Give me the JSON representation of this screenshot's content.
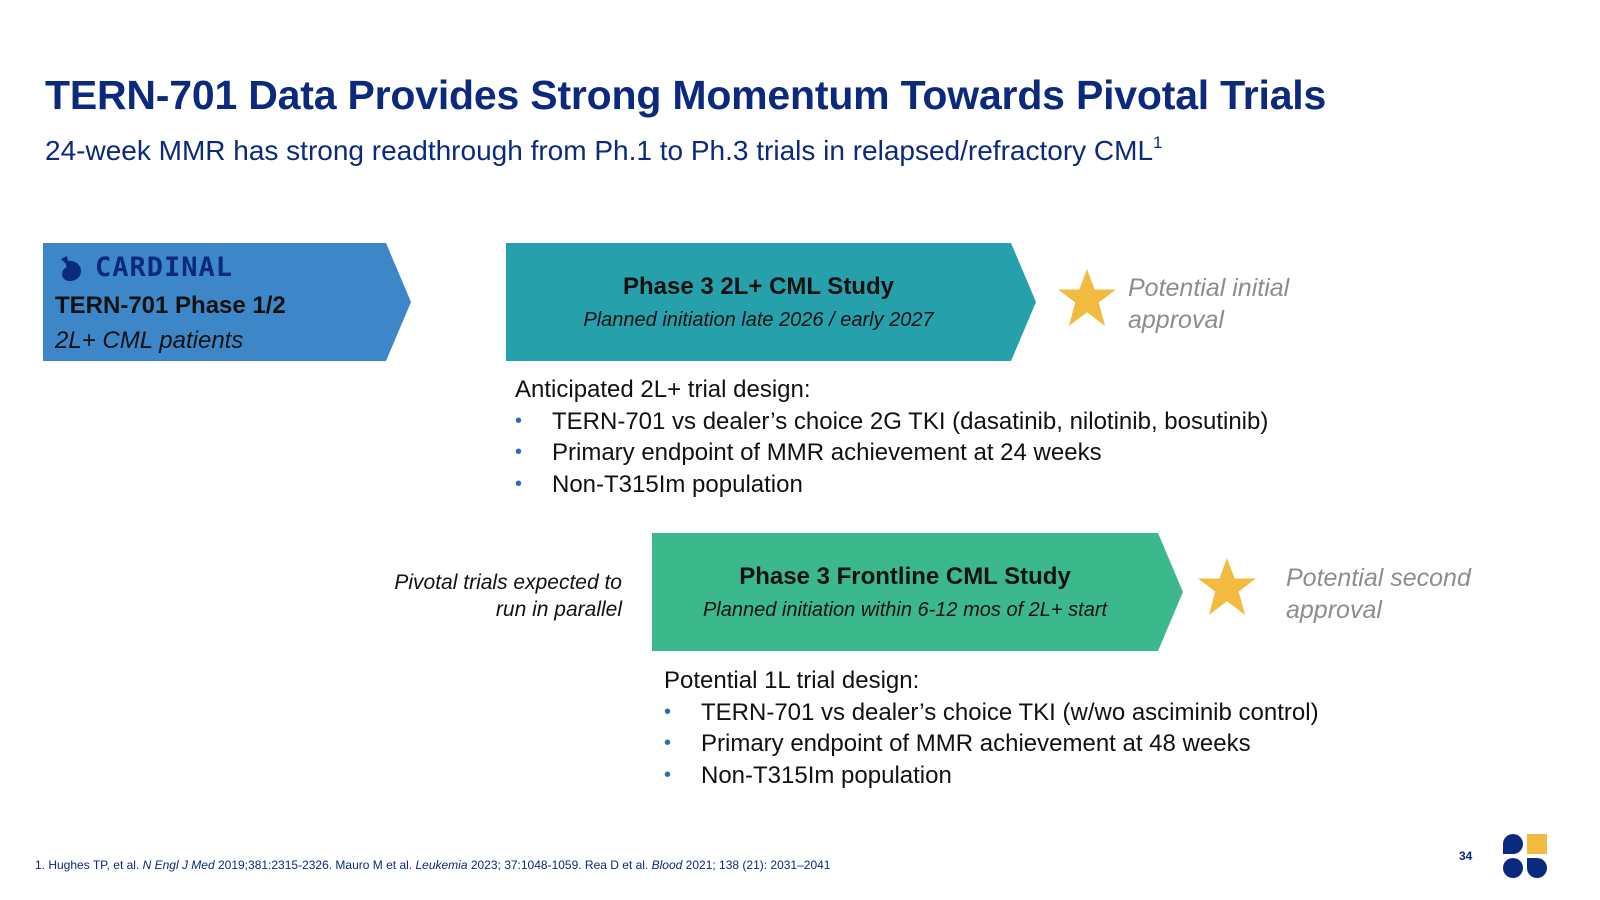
{
  "header": {
    "title": "TERN-701 Data Provides Strong Momentum Towards Pivotal Trials",
    "subtitle": "24-week MMR has strong readthrough from Ph.1 to Ph.3 trials in relapsed/refractory CML",
    "subtitle_superscript": "1"
  },
  "cardinal": {
    "logo_text": "CARDINAL",
    "line1": "TERN-701 Phase 1/2",
    "line2": "2L+ CML patients"
  },
  "study_2l": {
    "title": "Phase 3 2L+ CML Study",
    "subtitle": "Planned initiation late 2026 / early 2027",
    "approval_line1": "Potential initial",
    "approval_line2": "approval",
    "design_heading": "Anticipated 2L+ trial design:",
    "design_items": [
      "TERN-701 vs dealer’s choice 2G TKI (dasatinib, nilotinib, bosutinib)",
      "Primary endpoint of MMR achievement at 24 weeks",
      "Non-T315Im population"
    ]
  },
  "parallel_note": {
    "line1": "Pivotal trials expected to",
    "line2": "run in parallel"
  },
  "study_1l": {
    "title": "Phase 3 Frontline CML Study",
    "subtitle": "Planned initiation within 6-12 mos of 2L+ start",
    "approval_line1": "Potential second",
    "approval_line2": "approval",
    "design_heading": "Potential 1L trial design:",
    "design_items": [
      "TERN-701 vs dealer’s choice TKI (w/wo asciminib control)",
      "Primary endpoint of MMR achievement at 48 weeks",
      "Non-T315Im population"
    ]
  },
  "footnote": {
    "part1": "1. Hughes TP, et al. ",
    "journal1": "N Engl J Med",
    "part2": " 2019;381:2315-2326. Mauro M et al. ",
    "journal2": "Leukemia",
    "part3": " 2023; 37:1048-1059. Rea D et al. ",
    "journal3": "Blood",
    "part4": " 2021; 138 (21): 2031–2041"
  },
  "page_number": "34",
  "icons": {
    "star": "star-icon",
    "cardinal_logo": "cardinal-bird-icon",
    "brand": "company-logo-icon"
  },
  "colors": {
    "title": "#0b2a7d",
    "cardinal_box": "#3d87c9",
    "phase3_2l_box": "#26a0ab",
    "phase3_1l_box": "#3bb98c",
    "star": "#f2bb40",
    "approval_text": "#8d8d8d",
    "bullet": "#2a6bc2"
  }
}
